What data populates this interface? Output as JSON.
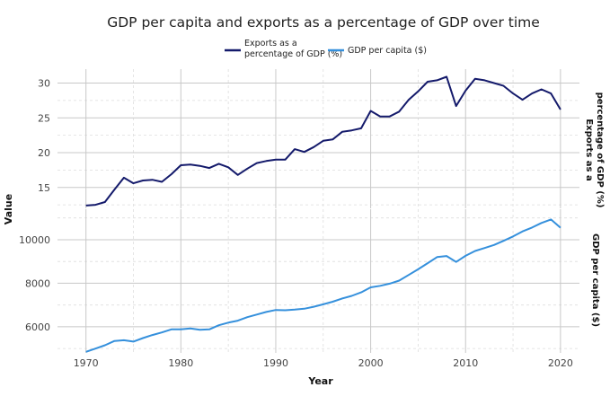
{
  "chart_data": {
    "type": "line",
    "title": "GDP per capita and exports as a percentage of GDP over time",
    "xlabel": "Year",
    "ylabel": "Value",
    "colors": {
      "exports": "#141a6b",
      "gdp": "#3590dc"
    },
    "legend": {
      "placement": "top",
      "exports_line1": "Exports as a",
      "exports_line2": "percentage of GDP (%)",
      "gdp": "GDP per capita ($)"
    },
    "x_ticks": [
      "1970",
      "1980",
      "1990",
      "2000",
      "2010",
      "2020"
    ],
    "x": [
      1970,
      1971,
      1972,
      1973,
      1974,
      1975,
      1976,
      1977,
      1978,
      1979,
      1980,
      1981,
      1982,
      1983,
      1984,
      1985,
      1986,
      1987,
      1988,
      1989,
      1990,
      1991,
      1992,
      1993,
      1994,
      1995,
      1996,
      1997,
      1998,
      1999,
      2000,
      2001,
      2002,
      2003,
      2004,
      2005,
      2006,
      2007,
      2008,
      2009,
      2010,
      2011,
      2012,
      2013,
      2014,
      2015,
      2016,
      2017,
      2018,
      2019,
      2020
    ],
    "panels": [
      {
        "strip_line1": "Exports as a",
        "strip_line2": "percentage of GDP (%)",
        "ylim": [
          12,
          32
        ],
        "y_ticks": [
          "15",
          "20",
          "25",
          "30"
        ],
        "series": [
          {
            "name": "Exports as a percentage of GDP (%)",
            "values": [
              12.4,
              12.5,
              12.9,
              14.7,
              16.4,
              15.6,
              16.0,
              16.1,
              15.8,
              16.9,
              18.2,
              18.3,
              18.1,
              17.8,
              18.4,
              17.9,
              16.8,
              17.7,
              18.5,
              18.8,
              19.0,
              19.0,
              20.5,
              20.1,
              20.8,
              21.7,
              21.9,
              23.0,
              23.2,
              23.5,
              26.0,
              25.2,
              25.2,
              25.9,
              27.6,
              28.8,
              30.2,
              30.4,
              30.9,
              26.7,
              28.9,
              30.6,
              30.4,
              30.0,
              29.6,
              28.5,
              27.6,
              28.5,
              29.1,
              28.5,
              26.2
            ]
          }
        ]
      },
      {
        "strip_line1": "GDP per capita ($)",
        "strip_line2": "",
        "ylim": [
          4800,
          11400
        ],
        "y_ticks": [
          "6000",
          "8000",
          "10000"
        ],
        "series": [
          {
            "name": "GDP per capita ($)",
            "values": [
              4850,
              5000,
              5150,
              5350,
              5380,
              5320,
              5480,
              5620,
              5740,
              5880,
              5880,
              5920,
              5860,
              5880,
              6070,
              6190,
              6280,
              6440,
              6560,
              6680,
              6770,
              6760,
              6790,
              6830,
              6920,
              7030,
              7150,
              7300,
              7420,
              7580,
              7810,
              7880,
              7980,
              8120,
              8380,
              8640,
              8920,
              9200,
              9250,
              8980,
              9260,
              9480,
              9620,
              9760,
              9950,
              10150,
              10380,
              10560,
              10770,
              10930,
              10550
            ]
          }
        ]
      }
    ]
  }
}
